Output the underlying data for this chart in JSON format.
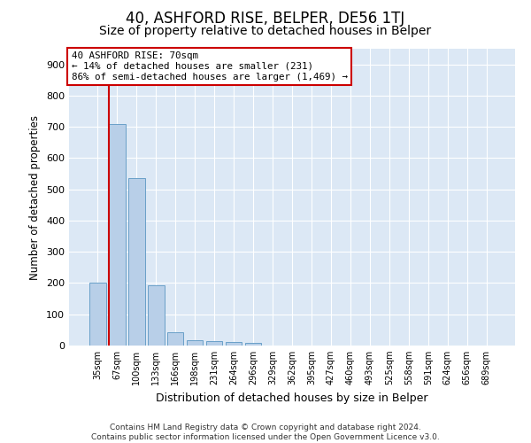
{
  "title": "40, ASHFORD RISE, BELPER, DE56 1TJ",
  "subtitle": "Size of property relative to detached houses in Belper",
  "xlabel": "Distribution of detached houses by size in Belper",
  "ylabel": "Number of detached properties",
  "categories": [
    "35sqm",
    "67sqm",
    "100sqm",
    "133sqm",
    "166sqm",
    "198sqm",
    "231sqm",
    "264sqm",
    "296sqm",
    "329sqm",
    "362sqm",
    "395sqm",
    "427sqm",
    "460sqm",
    "493sqm",
    "525sqm",
    "558sqm",
    "591sqm",
    "624sqm",
    "656sqm",
    "689sqm"
  ],
  "values": [
    200,
    710,
    535,
    193,
    42,
    17,
    14,
    11,
    9,
    0,
    0,
    0,
    0,
    0,
    0,
    0,
    0,
    0,
    0,
    0,
    0
  ],
  "bar_color": "#b8cfe8",
  "bar_edge_color": "#6aa0c8",
  "vline_color": "#cc0000",
  "annotation_line1": "40 ASHFORD RISE: 70sqm",
  "annotation_line2": "← 14% of detached houses are smaller (231)",
  "annotation_line3": "86% of semi-detached houses are larger (1,469) →",
  "annotation_box_color": "#ffffff",
  "annotation_box_edge": "#cc0000",
  "ylim": [
    0,
    950
  ],
  "yticks": [
    0,
    100,
    200,
    300,
    400,
    500,
    600,
    700,
    800,
    900
  ],
  "background_color": "#dce8f5",
  "grid_color": "#ffffff",
  "footer": "Contains HM Land Registry data © Crown copyright and database right 2024.\nContains public sector information licensed under the Open Government Licence v3.0.",
  "title_fontsize": 12,
  "subtitle_fontsize": 10,
  "xlabel_fontsize": 9,
  "ylabel_fontsize": 8.5,
  "footer_fontsize": 6.5
}
